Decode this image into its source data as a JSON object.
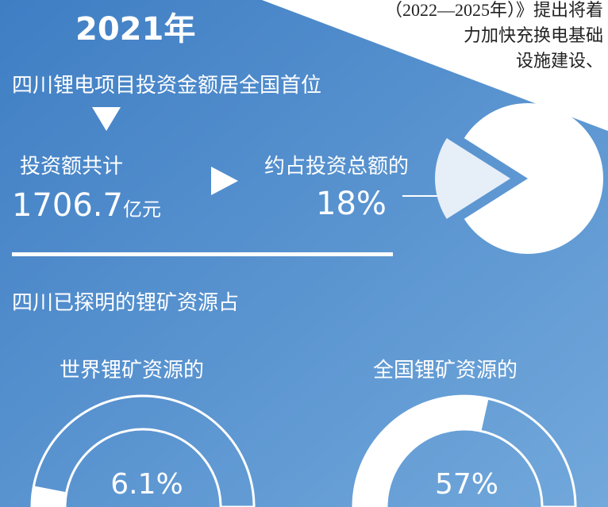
{
  "header": {
    "year": "2021年",
    "corner_text": [
      "（2022—2025年）》提出将着",
      "力加快充换电基础",
      "设施建设、"
    ]
  },
  "investment": {
    "heading": "四川锂电项目投资金额居全国首位",
    "total_label": "投资额共计",
    "total_value": "1706.7",
    "total_unit": "亿元",
    "share_label": "约占投资总额的",
    "share": {
      "value": 18,
      "label": "18%"
    }
  },
  "resources": {
    "heading": "四川已探明的锂矿资源占",
    "world": {
      "label": "世界锂矿资源的",
      "share": {
        "value": 6.1,
        "label": "6.1%"
      }
    },
    "national": {
      "label": "全国锂矿资源的",
      "share": {
        "value": 57,
        "label": "57%"
      }
    }
  }
}
